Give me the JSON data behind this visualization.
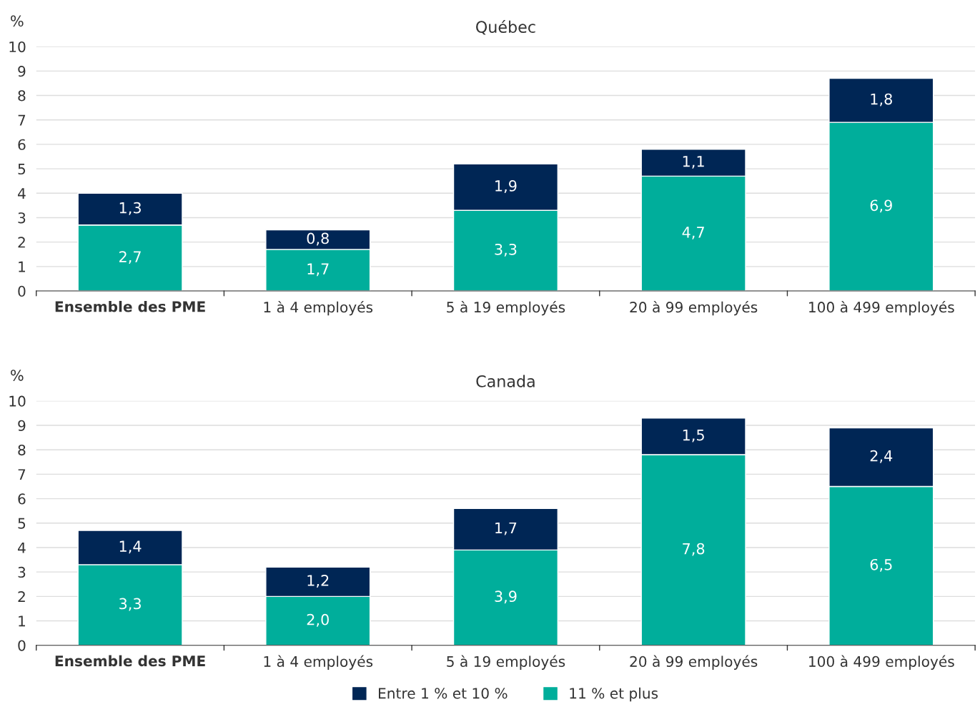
{
  "chart_data": [
    {
      "type": "bar",
      "title": "Québec",
      "ylabel": "%",
      "stacked": true,
      "grid": "y",
      "ylim": [
        0,
        10
      ],
      "yticks": [
        0,
        1,
        2,
        3,
        4,
        5,
        6,
        7,
        8,
        9,
        10
      ],
      "categories": [
        "Ensemble des PME",
        "1 à 4 employés",
        "5 à 19 employés",
        "20 à 99 employés",
        "100 à 499 employés"
      ],
      "series": [
        {
          "color": "#00ae9b",
          "values": [
            2.7,
            1.7,
            3.3,
            4.7,
            6.9
          ],
          "value_labels": [
            "2,7",
            "1,7",
            "3,3",
            "4,7",
            "6,9"
          ]
        },
        {
          "color": "#002655",
          "values": [
            1.3,
            0.8,
            1.9,
            1.1,
            1.8
          ],
          "value_labels": [
            "1,3",
            "0,8",
            "1,9",
            "1,1",
            "1,8"
          ]
        }
      ]
    },
    {
      "type": "bar",
      "title": "Canada",
      "ylabel": "%",
      "stacked": true,
      "grid": "y",
      "ylim": [
        0,
        10
      ],
      "yticks": [
        0,
        1,
        2,
        3,
        4,
        5,
        6,
        7,
        8,
        9,
        10
      ],
      "legend": "bottom",
      "categories": [
        "Ensemble des PME",
        "1 à 4 employés",
        "5 à 19 employés",
        "20 à 99 employés",
        "100 à 499 employés"
      ],
      "series": [
        {
          "name": "11 % et plus",
          "color": "#00ae9b",
          "values": [
            3.3,
            2.0,
            3.9,
            7.8,
            6.5
          ],
          "value_labels": [
            "3,3",
            "2,0",
            "3,9",
            "7,8",
            "6,5"
          ]
        },
        {
          "name": "Entre 1 % et 10 %",
          "color": "#002655",
          "values": [
            1.4,
            1.2,
            1.7,
            1.5,
            2.4
          ],
          "value_labels": [
            "1,4",
            "1,2",
            "1,7",
            "1,5",
            "2,4"
          ]
        }
      ]
    }
  ]
}
